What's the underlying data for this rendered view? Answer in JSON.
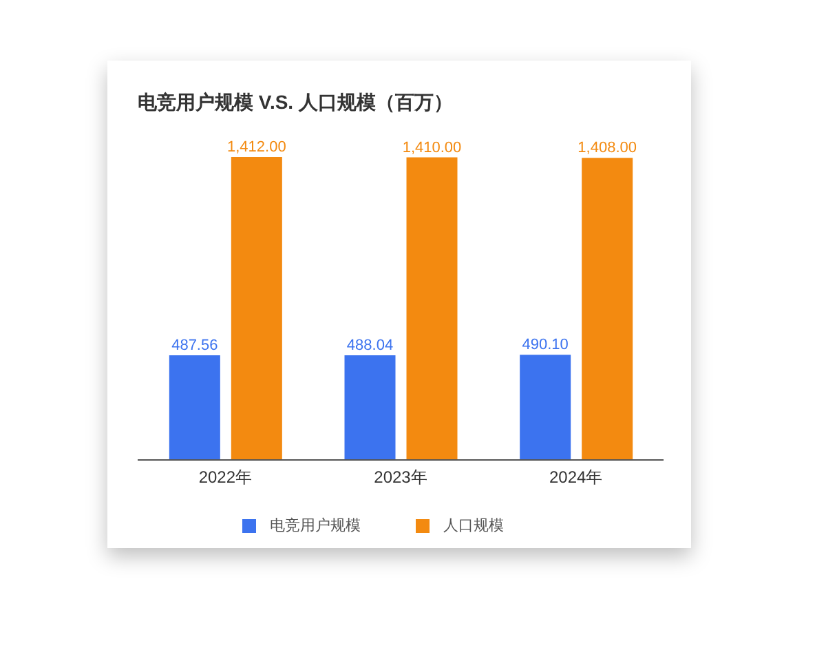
{
  "chart_data": {
    "type": "bar",
    "title": "电竞用户规模 V.S. 人口规模（百万）",
    "categories": [
      "2022年",
      "2023年",
      "2024年"
    ],
    "series": [
      {
        "name": "电竞用户规模",
        "color": "#3c73ef",
        "values": [
          487.56,
          488.04,
          490.1
        ],
        "value_labels": [
          "487.56",
          "488.04",
          "490.10"
        ]
      },
      {
        "name": "人口规模",
        "color": "#f38a10",
        "values": [
          1412,
          1410,
          1408
        ],
        "value_labels": [
          "1,412.00",
          "1,410.00",
          "1,408.00"
        ]
      }
    ],
    "legend": "bottom",
    "grid": false
  }
}
